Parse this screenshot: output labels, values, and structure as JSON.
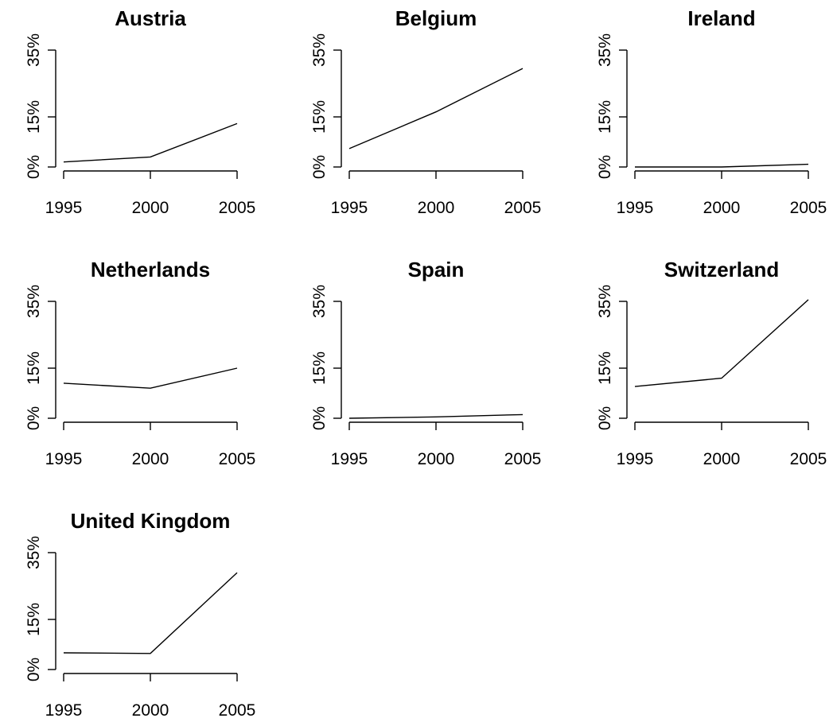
{
  "chart_data": [
    {
      "type": "line",
      "title": "Austria",
      "x": [
        1995,
        2000,
        2005
      ],
      "values": [
        1.5,
        3,
        13
      ],
      "xticks": [
        "1995",
        "2000",
        "2005"
      ],
      "yticks": [
        "0%",
        "15%",
        "35%"
      ],
      "ytick_values": [
        0,
        15,
        35
      ],
      "xlim": [
        1995,
        2005
      ],
      "ylim": [
        0,
        35
      ]
    },
    {
      "type": "line",
      "title": "Belgium",
      "x": [
        1995,
        2000,
        2005
      ],
      "values": [
        5.5,
        16.5,
        29.5
      ],
      "xticks": [
        "1995",
        "2000",
        "2005"
      ],
      "yticks": [
        "0%",
        "15%",
        "35%"
      ],
      "ytick_values": [
        0,
        15,
        35
      ],
      "xlim": [
        1995,
        2005
      ],
      "ylim": [
        0,
        35
      ]
    },
    {
      "type": "line",
      "title": "Ireland",
      "x": [
        1995,
        2000,
        2005
      ],
      "values": [
        0,
        0,
        0.8
      ],
      "xticks": [
        "1995",
        "2000",
        "2005"
      ],
      "yticks": [
        "0%",
        "15%",
        "35%"
      ],
      "ytick_values": [
        0,
        15,
        35
      ],
      "xlim": [
        1995,
        2005
      ],
      "ylim": [
        0,
        35
      ]
    },
    {
      "type": "line",
      "title": "Netherlands",
      "x": [
        1995,
        2000,
        2005
      ],
      "values": [
        10.5,
        9,
        15
      ],
      "xticks": [
        "1995",
        "2000",
        "2005"
      ],
      "yticks": [
        "0%",
        "15%",
        "35%"
      ],
      "ytick_values": [
        0,
        15,
        35
      ],
      "xlim": [
        1995,
        2005
      ],
      "ylim": [
        0,
        35
      ]
    },
    {
      "type": "line",
      "title": "Spain",
      "x": [
        1995,
        2000,
        2005
      ],
      "values": [
        0,
        0.4,
        1.1
      ],
      "xticks": [
        "1995",
        "2000",
        "2005"
      ],
      "yticks": [
        "0%",
        "15%",
        "35%"
      ],
      "ytick_values": [
        0,
        15,
        35
      ],
      "xlim": [
        1995,
        2005
      ],
      "ylim": [
        0,
        35
      ]
    },
    {
      "type": "line",
      "title": "Switzerland",
      "x": [
        1995,
        2000,
        2005
      ],
      "values": [
        9.5,
        12,
        35.5
      ],
      "xticks": [
        "1995",
        "2000",
        "2005"
      ],
      "yticks": [
        "0%",
        "15%",
        "35%"
      ],
      "ytick_values": [
        0,
        15,
        35
      ],
      "xlim": [
        1995,
        2005
      ],
      "ylim": [
        0,
        35
      ]
    },
    {
      "type": "line",
      "title": "United Kingdom",
      "x": [
        1995,
        2000,
        2005
      ],
      "values": [
        5,
        4.8,
        29
      ],
      "xticks": [
        "1995",
        "2000",
        "2005"
      ],
      "yticks": [
        "0%",
        "15%",
        "35%"
      ],
      "ytick_values": [
        0,
        15,
        35
      ],
      "xlim": [
        1995,
        2005
      ],
      "ylim": [
        0,
        35
      ]
    }
  ]
}
